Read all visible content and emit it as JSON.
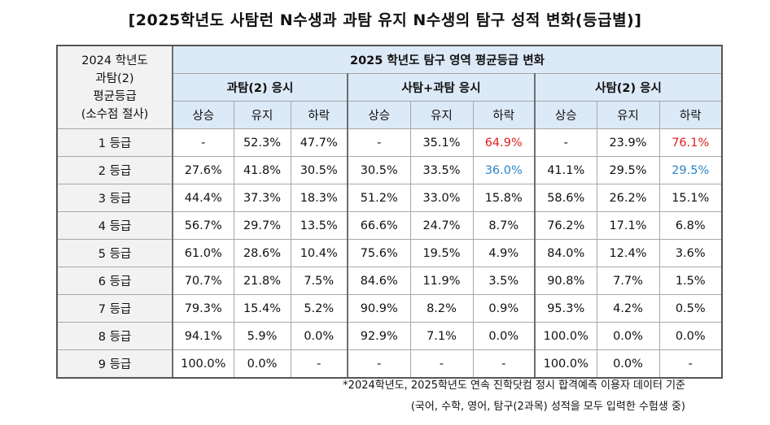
{
  "title": "[2025학년도 사탐런 N수생과 과탐 유지 N수생의 탐구 성적 변화(등급별)]",
  "corner": [
    "2024 학년도",
    "과탐(2)",
    "평균등급",
    "(소수점 절사)"
  ],
  "main_header": "2025 학년도 탐구 영역 평균등급 변화",
  "groups": [
    "과탐(2) 응시",
    "사탐+과탐 응시",
    "사탐(2) 응시"
  ],
  "sub_headers": [
    "상승",
    "유지",
    "하락"
  ],
  "rows": [
    {
      "label": "1 등급",
      "values": [
        "-",
        "52.3%",
        "47.7%",
        "-",
        "35.1%",
        "64.9%",
        "-",
        "23.9%",
        "76.1%"
      ]
    },
    {
      "label": "2 등급",
      "values": [
        "27.6%",
        "41.8%",
        "30.5%",
        "30.5%",
        "33.5%",
        "36.0%",
        "41.1%",
        "29.5%",
        "29.5%"
      ]
    },
    {
      "label": "3 등급",
      "values": [
        "44.4%",
        "37.3%",
        "18.3%",
        "51.2%",
        "33.0%",
        "15.8%",
        "58.6%",
        "26.2%",
        "15.1%"
      ]
    },
    {
      "label": "4 등급",
      "values": [
        "56.7%",
        "29.7%",
        "13.5%",
        "66.6%",
        "24.7%",
        "8.7%",
        "76.2%",
        "17.1%",
        "6.8%"
      ]
    },
    {
      "label": "5 등급",
      "values": [
        "61.0%",
        "28.6%",
        "10.4%",
        "75.6%",
        "19.5%",
        "4.9%",
        "84.0%",
        "12.4%",
        "3.6%"
      ]
    },
    {
      "label": "6 등급",
      "values": [
        "70.7%",
        "21.8%",
        "7.5%",
        "84.6%",
        "11.9%",
        "3.5%",
        "90.8%",
        "7.7%",
        "1.5%"
      ]
    },
    {
      "label": "7 등급",
      "values": [
        "79.3%",
        "15.4%",
        "5.2%",
        "90.9%",
        "8.2%",
        "0.9%",
        "95.3%",
        "4.2%",
        "0.5%"
      ]
    },
    {
      "label": "8 등급",
      "values": [
        "94.1%",
        "5.9%",
        "0.0%",
        "92.9%",
        "7.1%",
        "0.0%",
        "100.0%",
        "0.0%",
        "0.0%"
      ]
    },
    {
      "label": "9 등급",
      "values": [
        "100.0%",
        "0.0%",
        "-",
        "-",
        "-",
        "-",
        "100.0%",
        "0.0%",
        "-"
      ]
    }
  ],
  "highlight_colors": {
    "red": "#e0201f",
    "blue": "#2a86c9",
    "header_bg": "#dce9f7"
  },
  "footnotes": [
    "*2024학년도, 2025학년도 연속 진학닷컴 정시 합격예측 이용자 데이터 기준",
    "(국어, 수학, 영어, 탐구(2과목) 성적을 모두 입력한 수험생 중)"
  ]
}
